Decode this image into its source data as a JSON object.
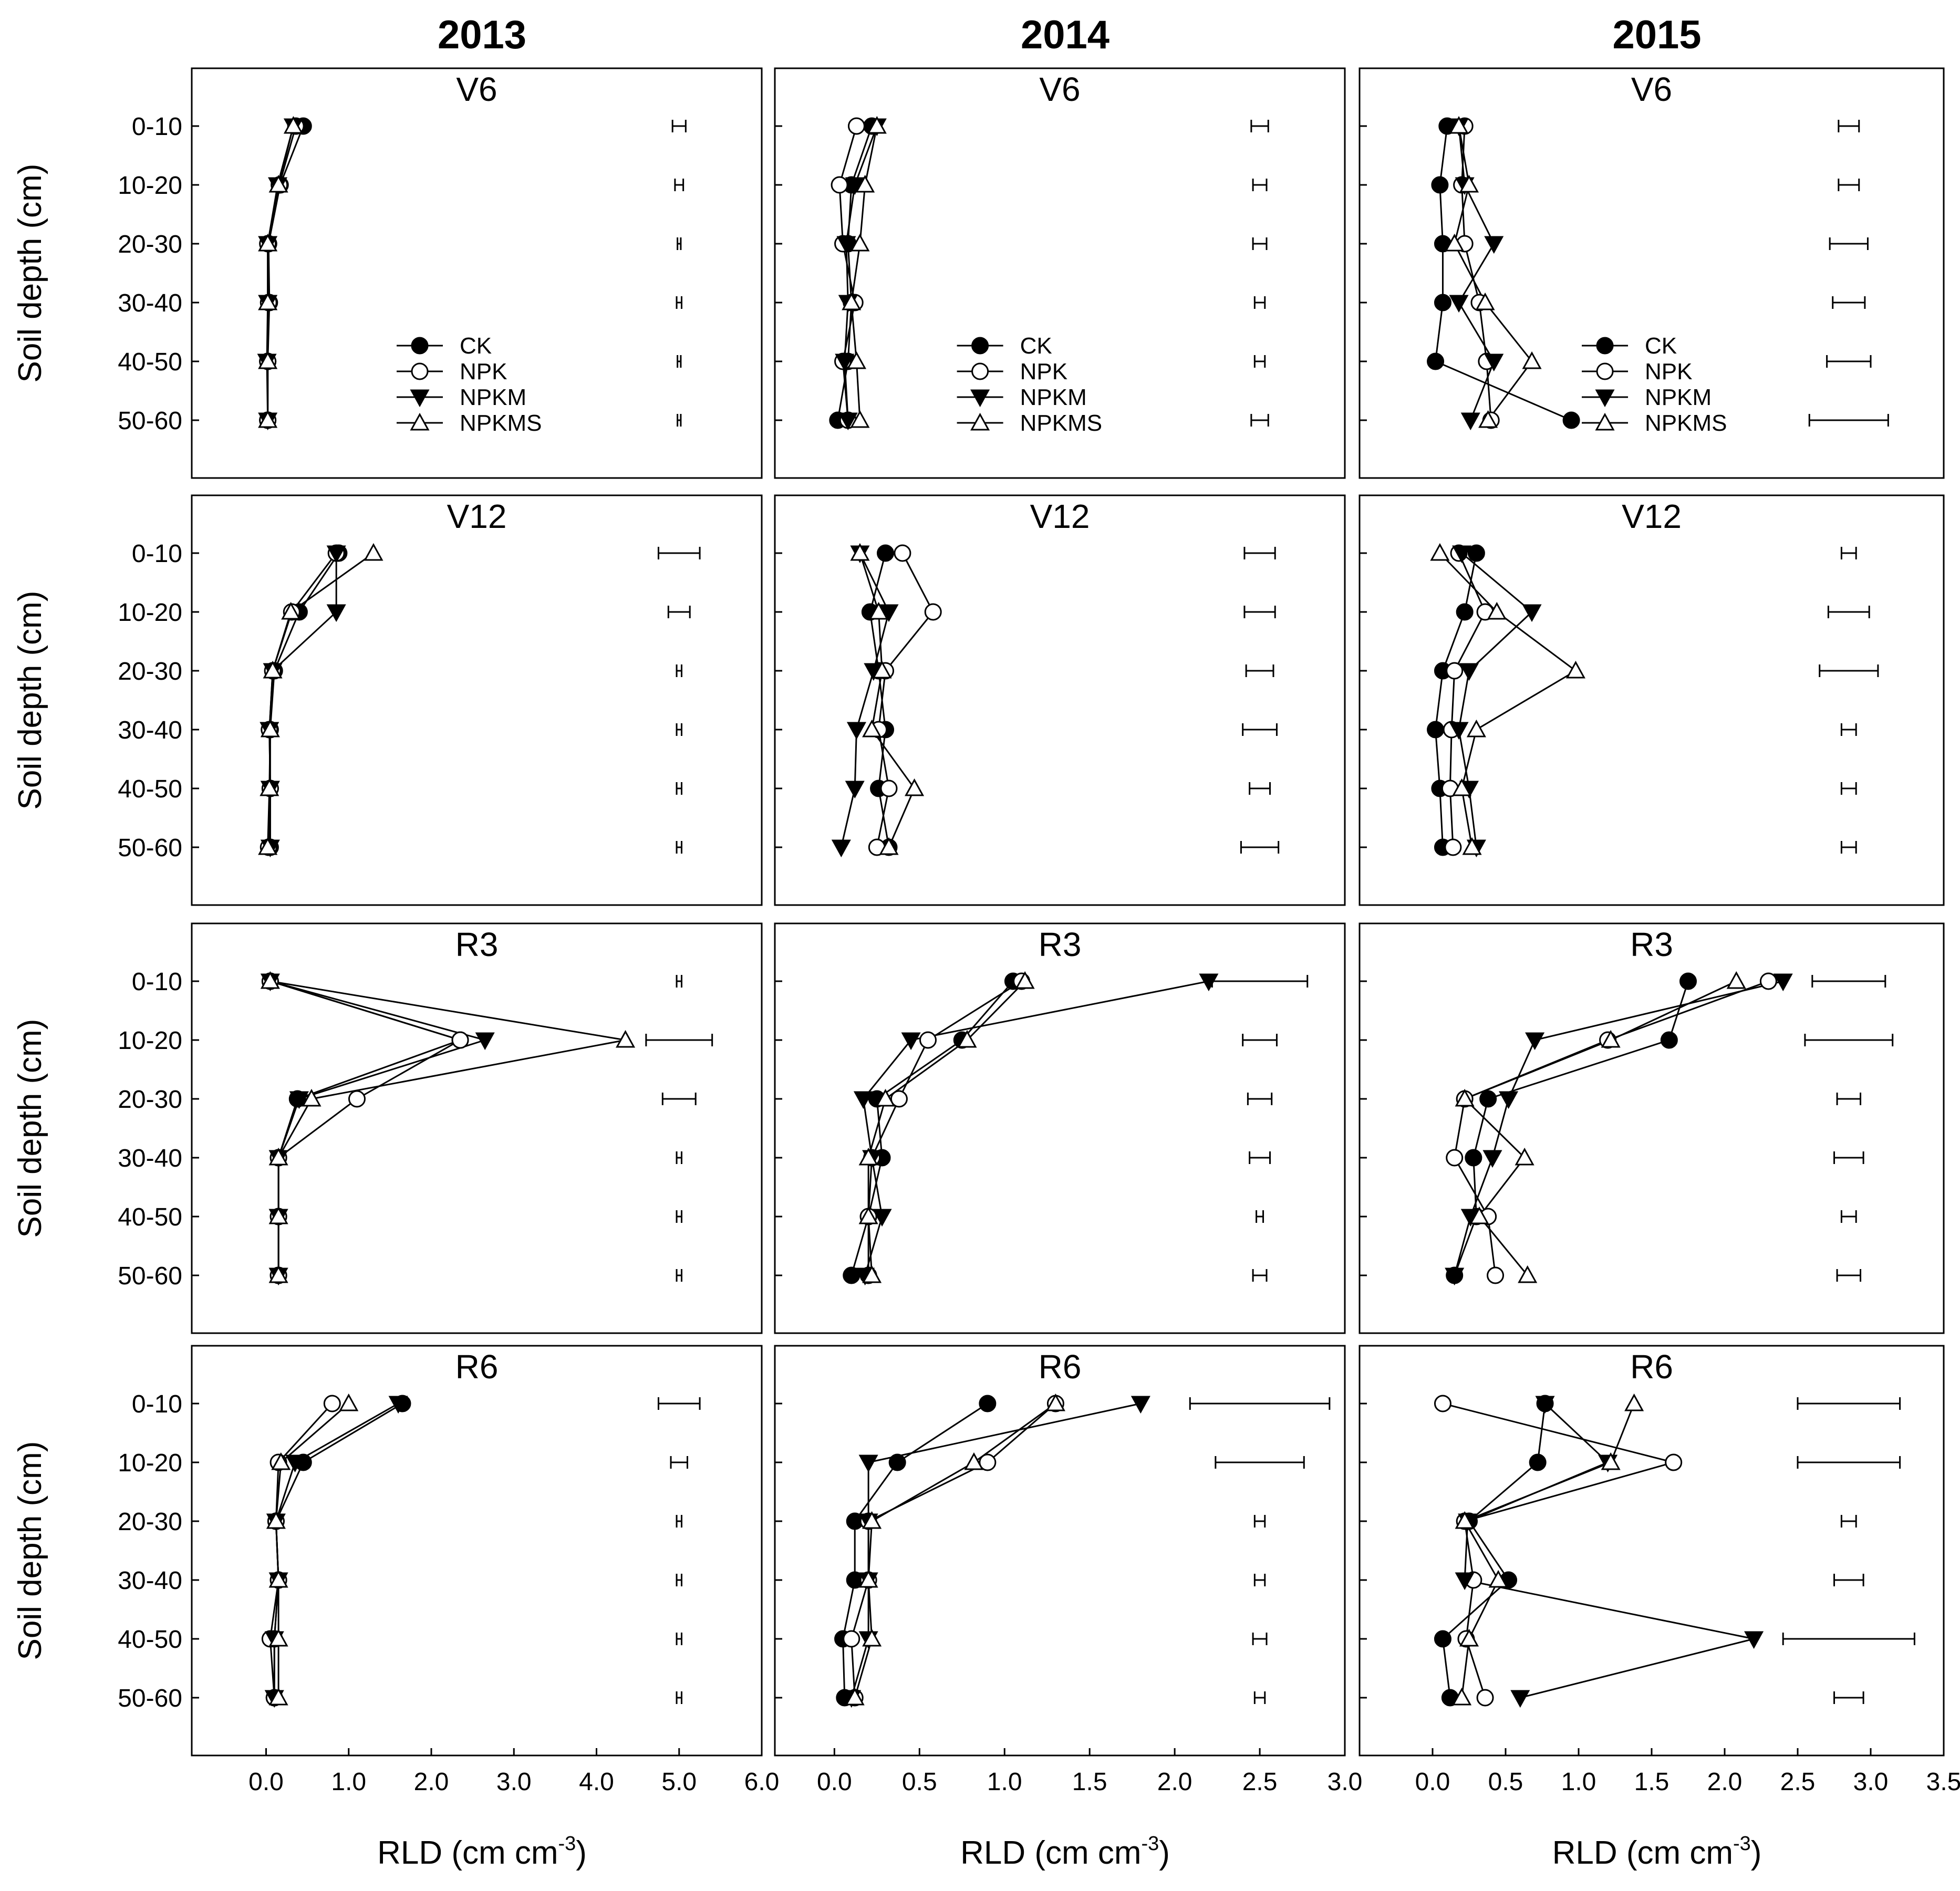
{
  "chart_data": {
    "type": "line",
    "title": "",
    "column_titles": [
      "2013",
      "2014",
      "2015"
    ],
    "stages": [
      "V6",
      "V12",
      "R3",
      "R6"
    ],
    "ylabel": "Soil depth (cm)",
    "xlabel": {
      "text": "RLD (cm cm",
      "sup": "-3",
      "close": ")"
    },
    "depths": [
      "0-10",
      "10-20",
      "20-30",
      "30-40",
      "40-50",
      "50-60"
    ],
    "series_names": [
      "CK",
      "NPK",
      "NPKM",
      "NPKMS"
    ],
    "markers": {
      "CK": "filled-circle",
      "NPK": "open-circle",
      "NPKM": "filled-triangle-down",
      "NPKMS": "open-triangle-up"
    },
    "years": [
      {
        "year": "2013",
        "xlim": [
          -0.9,
          6.0
        ],
        "xticks": [
          "0.0",
          "1.0",
          "2.0",
          "3.0",
          "4.0",
          "5.0",
          "6.0"
        ],
        "xtick_values": [
          0,
          1,
          2,
          3,
          4,
          5,
          6
        ],
        "errorbar_center": 5.0,
        "legend_stage": "V6",
        "stages": [
          {
            "stage": "V6",
            "errorbar_halfwidth": [
              0.08,
              0.05,
              0.02,
              0.03,
              0.02,
              0.02
            ],
            "series": {
              "CK": [
                0.45,
                0.17,
                0.03,
                0.04,
                0.02,
                0.02
              ],
              "NPK": [
                0.36,
                0.16,
                0.02,
                0.03,
                0.02,
                0.02
              ],
              "NPKM": [
                0.33,
                0.14,
                0.02,
                0.02,
                0.01,
                0.02
              ],
              "NPKMS": [
                0.33,
                0.15,
                0.02,
                0.02,
                0.02,
                0.02
              ]
            }
          },
          {
            "stage": "V12",
            "errorbar_halfwidth": [
              0.25,
              0.13,
              0.03,
              0.03,
              0.03,
              0.03
            ],
            "series": {
              "CK": [
                0.88,
                0.4,
                0.1,
                0.05,
                0.05,
                0.05
              ],
              "NPK": [
                0.85,
                0.31,
                0.08,
                0.04,
                0.05,
                0.03
              ],
              "NPKM": [
                0.85,
                0.85,
                0.08,
                0.04,
                0.05,
                0.05
              ],
              "NPKMS": [
                1.3,
                0.3,
                0.08,
                0.05,
                0.04,
                0.02
              ]
            }
          },
          {
            "stage": "R3",
            "errorbar_halfwidth": [
              0.03,
              0.4,
              0.2,
              0.03,
              0.03,
              0.03
            ],
            "series": {
              "CK": [
                0.05,
                2.35,
                0.38,
                0.15,
                0.15,
                0.15
              ],
              "NPK": [
                0.05,
                2.35,
                1.1,
                0.15,
                0.15,
                0.15
              ],
              "NPKM": [
                0.05,
                2.65,
                0.4,
                0.15,
                0.15,
                0.15
              ],
              "NPKMS": [
                0.05,
                4.35,
                0.55,
                0.15,
                0.15,
                0.15
              ]
            }
          },
          {
            "stage": "R6",
            "errorbar_halfwidth": [
              0.25,
              0.1,
              0.03,
              0.03,
              0.03,
              0.03
            ],
            "series": {
              "CK": [
                1.65,
                0.45,
                0.12,
                0.15,
                0.1,
                0.1
              ],
              "NPK": [
                0.8,
                0.15,
                0.12,
                0.15,
                0.05,
                0.1
              ],
              "NPKM": [
                1.6,
                0.35,
                0.12,
                0.15,
                0.1,
                0.1
              ],
              "NPKMS": [
                1.0,
                0.18,
                0.12,
                0.15,
                0.15,
                0.15
              ]
            }
          }
        ]
      },
      {
        "year": "2014",
        "xlim": [
          -0.35,
          3.0
        ],
        "xticks": [
          "0.0",
          "0.5",
          "1.0",
          "1.5",
          "2.0",
          "2.5",
          "3.0"
        ],
        "xtick_values": [
          0,
          0.5,
          1,
          1.5,
          2,
          2.5,
          3
        ],
        "errorbar_center": 2.5,
        "legend_stage": "V6",
        "stages": [
          {
            "stage": "V6",
            "errorbar_halfwidth": [
              0.05,
              0.04,
              0.04,
              0.03,
              0.03,
              0.05
            ],
            "series": {
              "CK": [
                0.22,
                0.1,
                0.08,
                0.1,
                0.08,
                0.02
              ],
              "NPK": [
                0.13,
                0.03,
                0.05,
                0.12,
                0.05,
                0.08
              ],
              "NPKM": [
                0.25,
                0.12,
                0.07,
                0.08,
                0.06,
                0.08
              ],
              "NPKMS": [
                0.25,
                0.18,
                0.15,
                0.1,
                0.13,
                0.15
              ]
            }
          },
          {
            "stage": "V12",
            "errorbar_halfwidth": [
              0.09,
              0.09,
              0.08,
              0.1,
              0.06,
              0.11
            ],
            "series": {
              "CK": [
                0.3,
                0.21,
                0.26,
                0.3,
                0.26,
                0.32
              ],
              "NPK": [
                0.4,
                0.58,
                0.3,
                0.26,
                0.32,
                0.25
              ],
              "NPKM": [
                0.15,
                0.32,
                0.23,
                0.13,
                0.12,
                0.04
              ],
              "NPKMS": [
                0.15,
                0.26,
                0.28,
                0.22,
                0.47,
                0.32
              ]
            }
          },
          {
            "stage": "R3",
            "errorbar_halfwidth": [
              0.28,
              0.1,
              0.07,
              0.06,
              0.02,
              0.04
            ],
            "series": {
              "CK": [
                1.05,
                0.75,
                0.25,
                0.28,
                0.2,
                0.1
              ],
              "NPK": [
                1.1,
                0.55,
                0.38,
                0.22,
                0.2,
                0.2
              ],
              "NPKM": [
                2.2,
                0.45,
                0.17,
                0.22,
                0.28,
                0.18
              ],
              "NPKMS": [
                1.12,
                0.78,
                0.3,
                0.2,
                0.2,
                0.22
              ]
            }
          },
          {
            "stage": "R6",
            "errorbar_halfwidth": [
              0.41,
              0.26,
              0.03,
              0.03,
              0.04,
              0.03
            ],
            "series": {
              "CK": [
                0.9,
                0.37,
                0.12,
                0.12,
                0.05,
                0.06
              ],
              "NPK": [
                1.3,
                0.9,
                0.2,
                0.2,
                0.1,
                0.12
              ],
              "NPKM": [
                1.8,
                0.2,
                0.2,
                0.2,
                0.2,
                0.1
              ],
              "NPKMS": [
                1.3,
                0.82,
                0.22,
                0.2,
                0.22,
                0.12
              ]
            }
          }
        ]
      },
      {
        "year": "2015",
        "xlim": [
          -0.5,
          3.5
        ],
        "xticks": [
          "0.0",
          "0.5",
          "1.0",
          "1.5",
          "2.0",
          "2.5",
          "3.0",
          "3.5"
        ],
        "xtick_values": [
          0,
          0.5,
          1,
          1.5,
          2,
          2.5,
          3,
          3.5
        ],
        "errorbar_center": 2.85,
        "legend_stage": "V6",
        "stages": [
          {
            "stage": "V6",
            "errorbar_halfwidth": [
              0.07,
              0.07,
              0.13,
              0.11,
              0.15,
              0.27
            ],
            "series": {
              "CK": [
                0.1,
                0.05,
                0.07,
                0.07,
                0.02,
                0.95
              ],
              "NPK": [
                0.22,
                0.2,
                0.22,
                0.32,
                0.37,
                0.4
              ],
              "NPKM": [
                0.18,
                0.22,
                0.42,
                0.18,
                0.42,
                0.26
              ],
              "NPKMS": [
                0.18,
                0.25,
                0.15,
                0.36,
                0.68,
                0.38
              ]
            }
          },
          {
            "stage": "V12",
            "errorbar_halfwidth": [
              0.05,
              0.14,
              0.2,
              0.05,
              0.05,
              0.05
            ],
            "series": {
              "CK": [
                0.3,
                0.22,
                0.07,
                0.02,
                0.05,
                0.07
              ],
              "NPK": [
                0.18,
                0.36,
                0.15,
                0.13,
                0.12,
                0.14
              ],
              "NPKM": [
                0.2,
                0.68,
                0.25,
                0.18,
                0.25,
                0.3
              ],
              "NPKMS": [
                0.05,
                0.44,
                0.98,
                0.3,
                0.2,
                0.27
              ]
            }
          },
          {
            "stage": "R3",
            "errorbar_halfwidth": [
              0.25,
              0.3,
              0.08,
              0.1,
              0.05,
              0.08
            ],
            "series": {
              "CK": [
                1.75,
                1.62,
                0.38,
                0.28,
                0.3,
                0.15
              ],
              "NPK": [
                2.3,
                1.2,
                0.22,
                0.15,
                0.38,
                0.43
              ],
              "NPKM": [
                2.4,
                0.7,
                0.52,
                0.41,
                0.26,
                0.15
              ],
              "NPKMS": [
                2.08,
                1.22,
                0.22,
                0.63,
                0.32,
                0.65
              ]
            }
          },
          {
            "stage": "R6",
            "errorbar_halfwidth": [
              0.35,
              0.35,
              0.05,
              0.1,
              0.45,
              0.1
            ],
            "series": {
              "CK": [
                0.77,
                0.72,
                0.25,
                0.52,
                0.07,
                0.12
              ],
              "NPK": [
                0.07,
                1.65,
                0.22,
                0.28,
                0.23,
                0.36
              ],
              "NPKM": [
                0.77,
                1.2,
                0.24,
                0.22,
                2.2,
                0.6
              ],
              "NPKMS": [
                1.38,
                1.22,
                0.22,
                0.45,
                0.25,
                0.2
              ]
            }
          }
        ]
      }
    ]
  }
}
